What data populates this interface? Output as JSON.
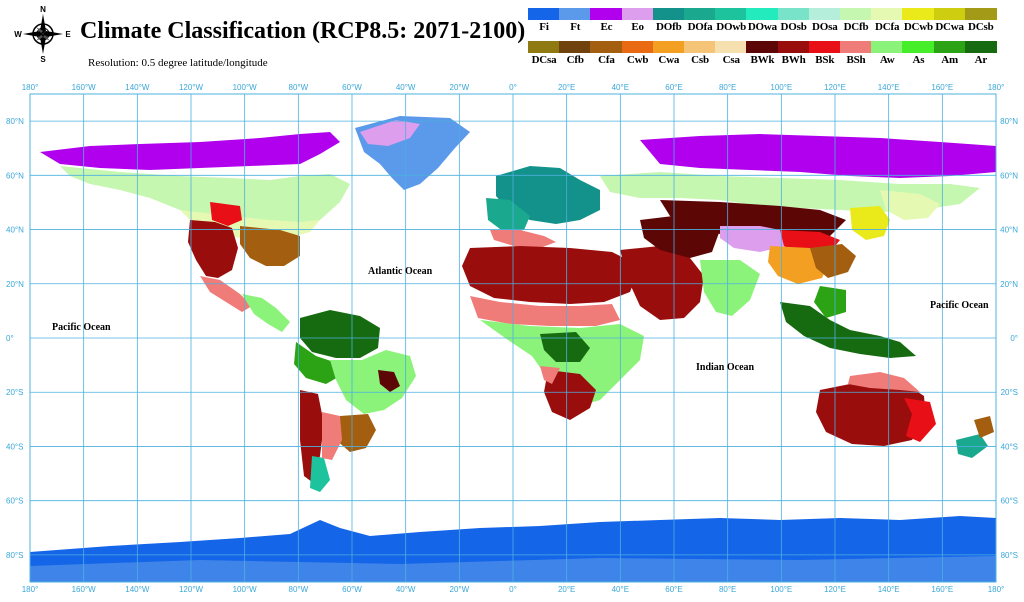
{
  "header": {
    "title": "Climate Classification (RCP8.5: 2071-2100)",
    "subtitle": "Resolution: 0.5 degree latitude/longitude",
    "compass": {
      "north": "N",
      "south": "S",
      "east": "E",
      "west": "W"
    }
  },
  "legend": {
    "row1": [
      {
        "code": "Fi",
        "color": "#1565e8"
      },
      {
        "code": "Ft",
        "color": "#5b99ea"
      },
      {
        "code": "Ec",
        "color": "#b000ee"
      },
      {
        "code": "Eo",
        "color": "#dd9eee"
      },
      {
        "code": "DOfb",
        "color": "#12928a"
      },
      {
        "code": "DOfa",
        "color": "#1aa98f"
      },
      {
        "code": "DOwb",
        "color": "#1cc39c"
      },
      {
        "code": "DOwa",
        "color": "#24ebbe"
      },
      {
        "code": "DOsb",
        "color": "#79e3c9"
      },
      {
        "code": "DOsa",
        "color": "#b5efdc"
      },
      {
        "code": "DCfb",
        "color": "#c6f7b0"
      },
      {
        "code": "DCfa",
        "color": "#e6f9b2"
      },
      {
        "code": "DCwb",
        "color": "#eaea1a"
      },
      {
        "code": "DCwa",
        "color": "#cfcd10"
      },
      {
        "code": "DCsb",
        "color": "#a39a18"
      }
    ],
    "row2": [
      {
        "code": "DCsa",
        "color": "#8f7a12"
      },
      {
        "code": "Cfb",
        "color": "#70420e"
      },
      {
        "code": "Cfa",
        "color": "#a35e10"
      },
      {
        "code": "Cwb",
        "color": "#ea6a14"
      },
      {
        "code": "Cwa",
        "color": "#f3a022"
      },
      {
        "code": "Csb",
        "color": "#f6c477"
      },
      {
        "code": "Csa",
        "color": "#f7e0b0"
      },
      {
        "code": "BWk",
        "color": "#5c0606"
      },
      {
        "code": "BWh",
        "color": "#9a0d0d"
      },
      {
        "code": "BSk",
        "color": "#e80f16"
      },
      {
        "code": "BSh",
        "color": "#f07c7a"
      },
      {
        "code": "Aw",
        "color": "#8cf37a"
      },
      {
        "code": "As",
        "color": "#46ee2a"
      },
      {
        "code": "Am",
        "color": "#2ca315"
      },
      {
        "code": "Ar",
        "color": "#166b11"
      }
    ]
  },
  "axes": {
    "longitude_labels": [
      "180°",
      "160°W",
      "140°W",
      "120°W",
      "100°W",
      "80°W",
      "60°W",
      "40°W",
      "20°W",
      "0°",
      "20°E",
      "40°E",
      "60°E",
      "80°E",
      "100°E",
      "120°E",
      "140°E",
      "160°E",
      "180°"
    ],
    "latitude_labels": [
      "80°N",
      "60°N",
      "40°N",
      "20°N",
      "0°",
      "20°S",
      "40°S",
      "60°S",
      "80°S"
    ],
    "longitude_values": [
      -180,
      -160,
      -140,
      -120,
      -100,
      -80,
      -60,
      -40,
      -20,
      0,
      20,
      40,
      60,
      80,
      100,
      120,
      140,
      160,
      180
    ],
    "latitude_values": [
      80,
      60,
      40,
      20,
      0,
      -20,
      -40,
      -60,
      -80
    ],
    "grid_color": "#4cb0df"
  },
  "oceans": {
    "atlantic": "Atlantic Ocean",
    "pacific_west": "Pacific Ocean",
    "pacific_east": "Pacific Ocean",
    "indian": "Indian Ocean"
  }
}
